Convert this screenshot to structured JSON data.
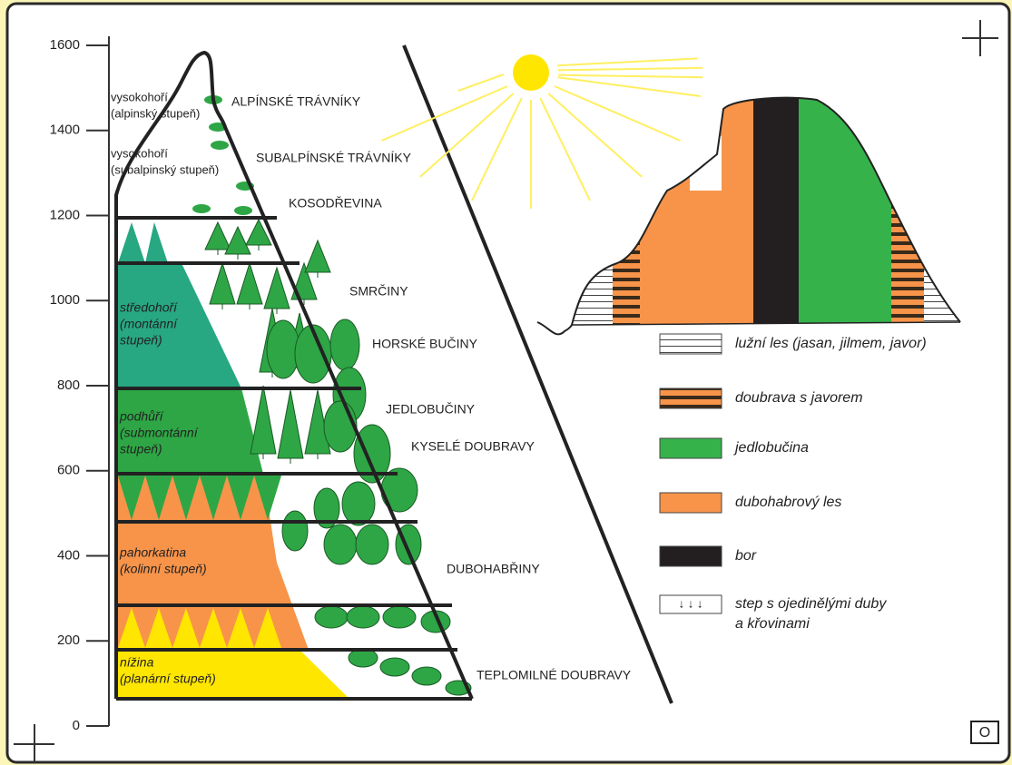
{
  "axis": {
    "ticks": [
      0,
      200,
      400,
      600,
      800,
      1000,
      1200,
      1400,
      1600
    ]
  },
  "zones": [
    {
      "lines": [
        "vysokohoří",
        "(alpinský stupeň)"
      ]
    },
    {
      "lines": [
        "vysokohoří",
        "(subalpinský stupeň)"
      ]
    },
    {
      "lines": [
        "středohoří",
        "(montánní",
        "stupeň)"
      ]
    },
    {
      "lines": [
        "podhůří",
        "(submontánní",
        "stupeň)"
      ]
    },
    {
      "lines": [
        "pahorkatina",
        "(kolinní stupeň)"
      ]
    },
    {
      "lines": [
        "nížina",
        "(planární stupeň)"
      ]
    }
  ],
  "vegetation": [
    "ALPÍNSKÉ TRÁVNÍKY",
    "SUBALPÍNSKÉ TRÁVNÍKY",
    "KOSODŘEVINA",
    "SMRČINY",
    "HORSKÉ BUČINY",
    "JEDLOBUČINY",
    "KYSELÉ DOUBRAVY",
    "DUBOHABŘINY",
    "TEPLOMILNÉ DOUBRAVY"
  ],
  "legend": [
    {
      "lines": [
        "lužní les (jasan, jilmem, javor)"
      ]
    },
    {
      "lines": [
        "doubrava s javorem"
      ]
    },
    {
      "lines": [
        "jedlobučina"
      ]
    },
    {
      "lines": [
        "dubohabrový les"
      ]
    },
    {
      "lines": [
        "bor"
      ]
    },
    {
      "lines": [
        "step s ojedinělými duby",
        "a křovinami"
      ]
    }
  ],
  "corner_mark": "O"
}
